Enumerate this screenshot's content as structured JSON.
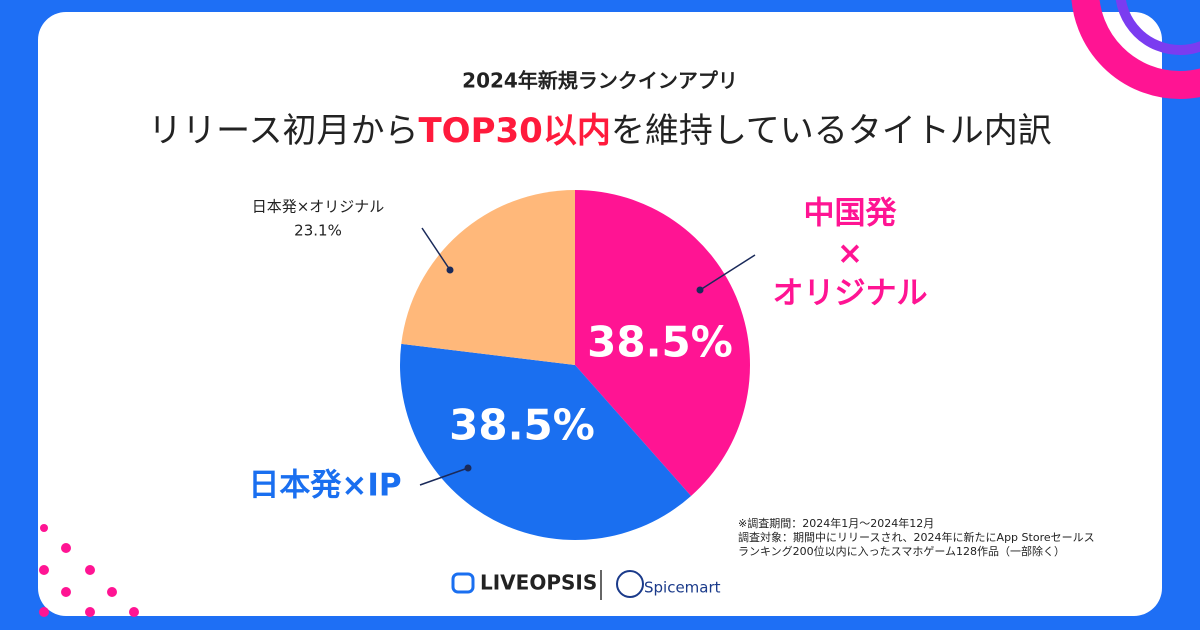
{
  "chart_data": {
    "type": "pie",
    "title": "2024年新規ランクインアプリ",
    "subtitle_parts": [
      "リリース初月から",
      "TOP30以内",
      "を維持しているタイトル内訳"
    ],
    "categories": [
      [
        "中国発",
        "×",
        "オリジナル"
      ],
      [
        "日本発×IP"
      ],
      [
        "日本発×オリジナル"
      ]
    ],
    "values": [
      38.5,
      38.5,
      23.1
    ],
    "value_labels": [
      "38.5%",
      "38.5%",
      "23.1%"
    ],
    "colors": [
      "#ff1493",
      "#1a6ff0",
      "#ffb87a"
    ],
    "notes": [
      "※調査期間：2024年1月～2024年12月",
      "調査対象：期間中にリリースされ、2024年に新たにApp Storeセールス",
      "ランキング200位以内に入ったスマホゲーム128作品（一部除く）"
    ],
    "logos": [
      "LIVEOPSIS",
      "Spicemart"
    ]
  }
}
